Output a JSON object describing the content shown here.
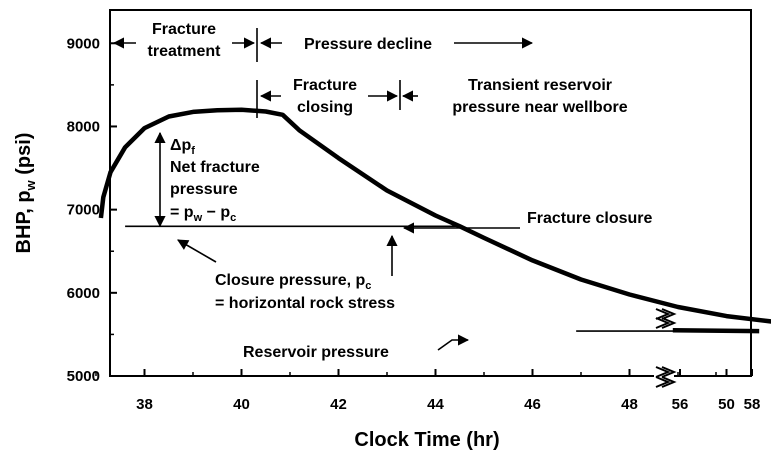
{
  "chart_data": {
    "type": "line",
    "xlabel": "Clock Time (hr)",
    "ylabel_parts": [
      "BHP, p",
      "w",
      " (psi)"
    ],
    "x_ticks": [
      "38",
      "40",
      "42",
      "44",
      "46",
      "48",
      "50",
      "56",
      "58"
    ],
    "y_ticks": [
      "5000",
      "6000",
      "7000",
      "8000",
      "9000"
    ],
    "ylim": [
      5000,
      9400
    ],
    "series": [
      {
        "values": [
          {
            "x": 37.1,
            "y": 6900
          },
          {
            "x": 37.15,
            "y": 7150
          },
          {
            "x": 37.3,
            "y": 7450
          },
          {
            "x": 37.6,
            "y": 7750
          },
          {
            "x": 38.0,
            "y": 7980
          },
          {
            "x": 38.5,
            "y": 8120
          },
          {
            "x": 39.0,
            "y": 8175
          },
          {
            "x": 39.5,
            "y": 8195
          },
          {
            "x": 40.0,
            "y": 8200
          },
          {
            "x": 40.5,
            "y": 8180
          },
          {
            "x": 40.85,
            "y": 8140
          },
          {
            "x": 41.2,
            "y": 7950
          },
          {
            "x": 42.0,
            "y": 7620
          },
          {
            "x": 43.0,
            "y": 7230
          },
          {
            "x": 44.0,
            "y": 6930
          },
          {
            "x": 44.5,
            "y": 6800
          },
          {
            "x": 45.0,
            "y": 6660
          },
          {
            "x": 46.0,
            "y": 6390
          },
          {
            "x": 47.0,
            "y": 6160
          },
          {
            "x": 48.0,
            "y": 5980
          },
          {
            "x": 49.0,
            "y": 5830
          },
          {
            "x": 50.0,
            "y": 5720
          },
          {
            "x": 51.0,
            "y": 5650
          }
        ]
      },
      {
        "values": [
          {
            "x": 55.8,
            "y": 5550
          },
          {
            "x": 58.2,
            "y": 5540
          }
        ]
      }
    ],
    "closure_line": {
      "x_start": 37.6,
      "x_end": 44.5,
      "y": 6800
    },
    "reservoir_line": {
      "x_start": 46.9,
      "x_end": 50.6,
      "y": 5540
    },
    "annotations": {
      "fracture_treatment": [
        "Fracture",
        "treatment"
      ],
      "pressure_decline": "Pressure decline",
      "fracture_closing": [
        "Fracture",
        "closing"
      ],
      "transient": [
        "Transient reservoir",
        "pressure near wellbore"
      ],
      "delta_pf": [
        "Δp",
        "f"
      ],
      "net_fracture_pressure": [
        "Net fracture",
        "pressure"
      ],
      "net_formula": [
        "= p",
        "w",
        " − p",
        "c"
      ],
      "fracture_closure": "Fracture closure",
      "closure_pressure": [
        "Closure pressure, p",
        "c"
      ],
      "rock_stress": "= horizontal rock stress",
      "reservoir_pressure": "Reservoir pressure"
    }
  }
}
